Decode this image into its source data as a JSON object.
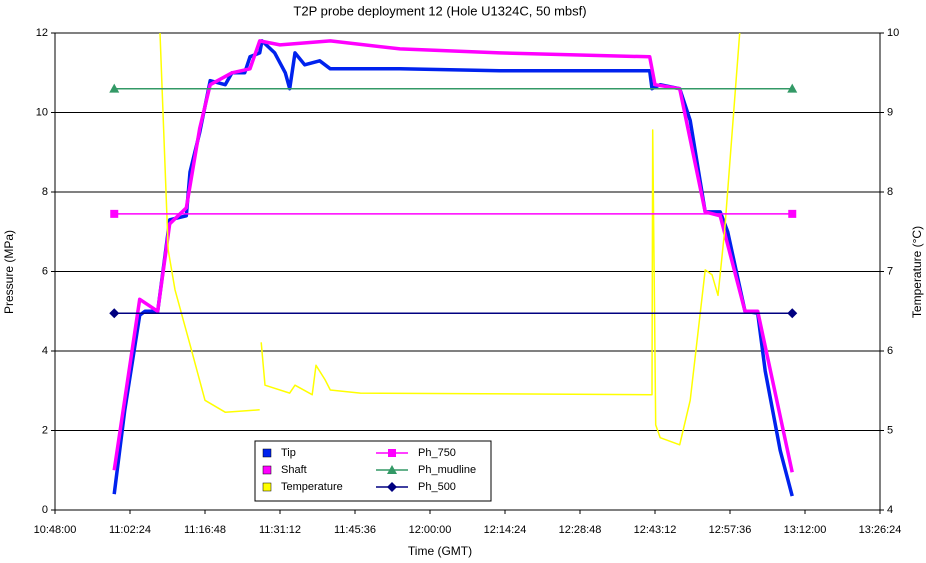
{
  "chart_data": {
    "type": "line",
    "title": "T2P probe deployment 12 (Hole U1324C, 50 mbsf)",
    "x_label": "Time (GMT)",
    "y_label": "Pressure (MPa)",
    "y2_label": "Temperature (°C)",
    "xlim": [
      0.45,
      0.56
    ],
    "xticks": [
      {
        "value": 0.45,
        "label": "10:48:00"
      },
      {
        "value": 0.46,
        "label": "11:02:24"
      },
      {
        "value": 0.47,
        "label": "11:16:48"
      },
      {
        "value": 0.48,
        "label": "11:31:12"
      },
      {
        "value": 0.49,
        "label": "11:45:36"
      },
      {
        "value": 0.5,
        "label": "12:00:00"
      },
      {
        "value": 0.51,
        "label": "12:14:24"
      },
      {
        "value": 0.52,
        "label": "12:28:48"
      },
      {
        "value": 0.53,
        "label": "12:43:12"
      },
      {
        "value": 0.54,
        "label": "12:57:36"
      },
      {
        "value": 0.55,
        "label": "13:12:00"
      },
      {
        "value": 0.56,
        "label": "13:26:24"
      }
    ],
    "ylim": [
      0,
      12
    ],
    "yticks": [
      0,
      2,
      4,
      6,
      8,
      10,
      12
    ],
    "y2lim": [
      4,
      10
    ],
    "y2ticks": [
      4,
      5,
      6,
      7,
      8,
      9,
      10
    ],
    "grid": true,
    "legend": "lower center",
    "series": [
      {
        "name": "Tip",
        "color": "#0022ee",
        "x": [
          0.4579,
          0.4593,
          0.4613,
          0.462,
          0.4637,
          0.4653,
          0.4675,
          0.468,
          0.4693,
          0.4707,
          0.4727,
          0.4736,
          0.4753,
          0.476,
          0.4773,
          0.4776,
          0.4793,
          0.4807,
          0.4813,
          0.482,
          0.4833,
          0.4853,
          0.4867,
          0.496,
          0.5093,
          0.5293,
          0.5296,
          0.5307,
          0.5333,
          0.5347,
          0.5367,
          0.5387,
          0.5397,
          0.542,
          0.5437,
          0.5447,
          0.5467,
          0.5483
        ],
        "values": [
          0.4,
          2.5,
          4.9,
          5.0,
          5.0,
          7.3,
          7.4,
          8.5,
          9.5,
          10.8,
          10.7,
          11.0,
          11.0,
          11.4,
          11.5,
          11.8,
          11.5,
          11.0,
          10.6,
          11.5,
          11.2,
          11.3,
          11.1,
          11.1,
          11.05,
          11.05,
          10.6,
          10.7,
          10.6,
          9.8,
          7.5,
          7.5,
          7.0,
          5.0,
          4.95,
          3.5,
          1.5,
          0.35
        ]
      },
      {
        "name": "Shaft",
        "color": "#ff00ff",
        "x": [
          0.4579,
          0.4613,
          0.4637,
          0.4653,
          0.4675,
          0.4693,
          0.4707,
          0.4736,
          0.476,
          0.4773,
          0.48,
          0.4867,
          0.496,
          0.5093,
          0.5293,
          0.53,
          0.5333,
          0.5367,
          0.5387,
          0.542,
          0.5437,
          0.5483
        ],
        "values": [
          1.0,
          5.3,
          5.0,
          7.2,
          7.6,
          9.6,
          10.7,
          11.0,
          11.1,
          11.8,
          11.7,
          11.8,
          11.6,
          11.5,
          11.4,
          10.7,
          10.6,
          7.5,
          7.4,
          5.0,
          5.0,
          0.95
        ]
      },
      {
        "name": "Temperature",
        "color": "#ffff00",
        "axis": "y2",
        "x": [
          0.464,
          0.4651,
          0.466,
          0.468,
          0.47,
          0.4727,
          0.4773,
          0.4774,
          0.4775,
          0.478,
          0.4813,
          0.482,
          0.4843,
          0.4848,
          0.486,
          0.4867,
          0.4907,
          0.5296,
          0.5297,
          0.5301,
          0.5307,
          0.5333,
          0.5347,
          0.5367,
          0.5376,
          0.5384,
          0.5393,
          0.5413
        ],
        "values": [
          10,
          7.27,
          6.77,
          6.08,
          5.38,
          5.23,
          5.26,
          null,
          6.11,
          5.57,
          5.47,
          5.57,
          5.45,
          5.82,
          5.64,
          5.51,
          5.47,
          5.45,
          8.78,
          5.07,
          4.91,
          4.82,
          5.38,
          7.02,
          6.96,
          6.7,
          7.52,
          10
        ]
      },
      {
        "name": "Ph_750",
        "color": "#ff00ff",
        "marker": "square",
        "x": [
          0.4579,
          0.5483
        ],
        "values": [
          7.45,
          7.45
        ]
      },
      {
        "name": "Ph_mudline",
        "color": "#339966",
        "marker": "triangle",
        "x": [
          0.4579,
          0.5483
        ],
        "values": [
          10.6,
          10.6
        ]
      },
      {
        "name": "Ph_500",
        "color": "#000080",
        "marker": "diamond",
        "x": [
          0.4579,
          0.5483
        ],
        "values": [
          4.95,
          4.95
        ]
      }
    ]
  }
}
